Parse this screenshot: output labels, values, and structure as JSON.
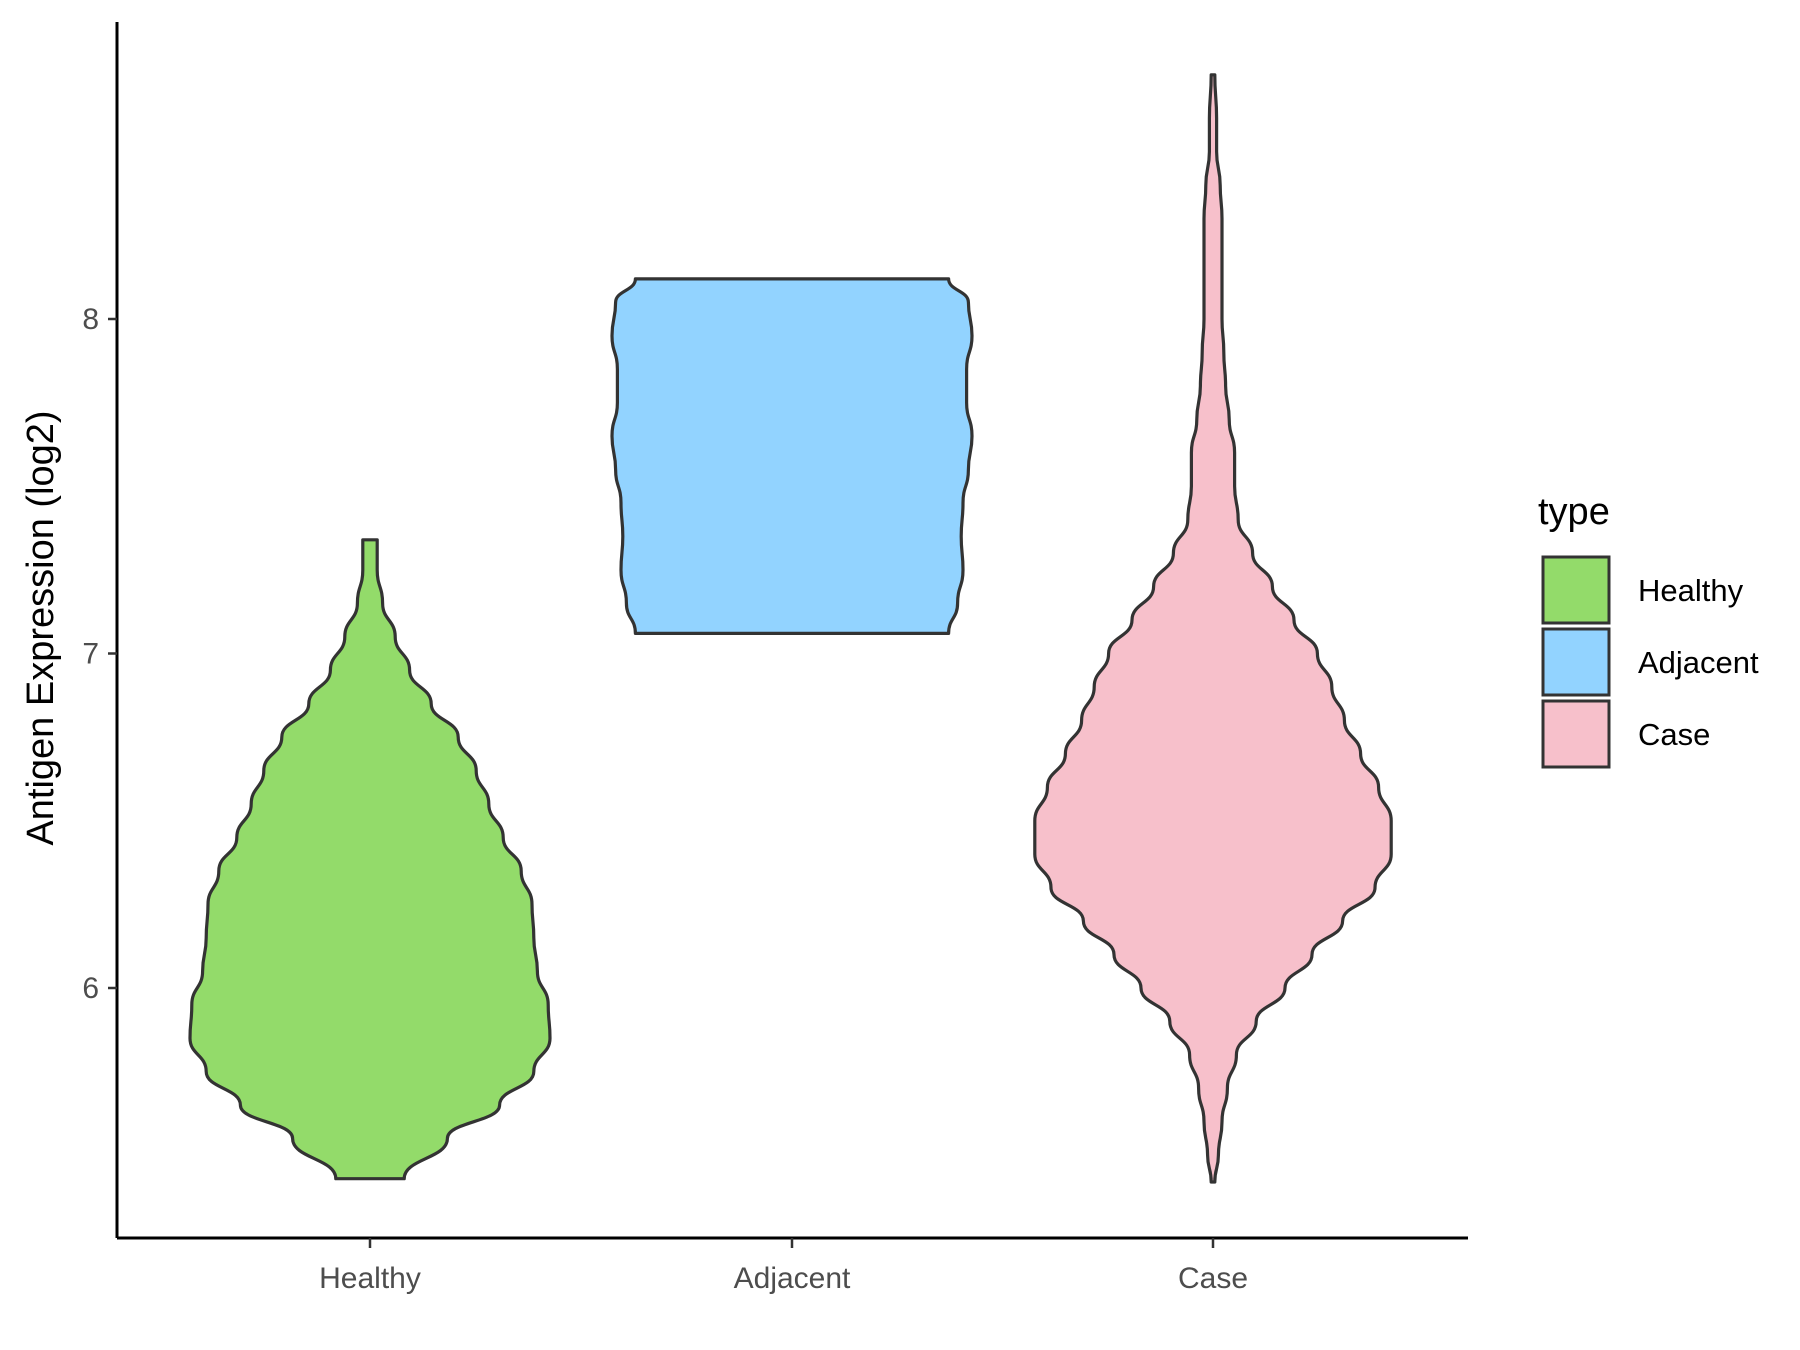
{
  "chart_data": {
    "type": "violin",
    "xlabel": "",
    "ylabel": "Antigen Expression (log2)",
    "categories": [
      "Healthy",
      "Adjacent",
      "Case"
    ],
    "y_ticks": [
      6,
      7,
      8
    ],
    "ylim": [
      5.28,
      8.9
    ],
    "grid": false,
    "legend": {
      "title": "type",
      "position": "right",
      "entries": [
        "Healthy",
        "Adjacent",
        "Case"
      ]
    },
    "series": [
      {
        "category": "Healthy",
        "color": "#93DB6A",
        "min": 5.43,
        "max": 7.34,
        "density_profile": [
          [
            5.43,
            0.19
          ],
          [
            5.55,
            0.43
          ],
          [
            5.65,
            0.72
          ],
          [
            5.75,
            0.91
          ],
          [
            5.85,
            1.0
          ],
          [
            5.95,
            0.99
          ],
          [
            6.05,
            0.93
          ],
          [
            6.15,
            0.91
          ],
          [
            6.25,
            0.9
          ],
          [
            6.35,
            0.84
          ],
          [
            6.45,
            0.74
          ],
          [
            6.55,
            0.66
          ],
          [
            6.65,
            0.59
          ],
          [
            6.75,
            0.49
          ],
          [
            6.85,
            0.34
          ],
          [
            6.95,
            0.22
          ],
          [
            7.05,
            0.14
          ],
          [
            7.15,
            0.07
          ],
          [
            7.25,
            0.04
          ],
          [
            7.34,
            0.04
          ]
        ]
      },
      {
        "category": "Adjacent",
        "color": "#92D3FF",
        "min": 7.06,
        "max": 8.12,
        "density_profile": [
          [
            7.06,
            0.87
          ],
          [
            7.15,
            0.92
          ],
          [
            7.25,
            0.95
          ],
          [
            7.35,
            0.94
          ],
          [
            7.45,
            0.95
          ],
          [
            7.55,
            0.98
          ],
          [
            7.65,
            1.0
          ],
          [
            7.75,
            0.97
          ],
          [
            7.85,
            0.97
          ],
          [
            7.95,
            1.0
          ],
          [
            8.05,
            0.98
          ],
          [
            8.12,
            0.87
          ]
        ]
      },
      {
        "category": "Case",
        "color": "#F7C0CB",
        "min": 5.42,
        "max": 8.73,
        "density_profile": [
          [
            5.42,
            0.01
          ],
          [
            5.5,
            0.03
          ],
          [
            5.6,
            0.05
          ],
          [
            5.7,
            0.08
          ],
          [
            5.8,
            0.13
          ],
          [
            5.9,
            0.24
          ],
          [
            6.0,
            0.4
          ],
          [
            6.1,
            0.55
          ],
          [
            6.2,
            0.72
          ],
          [
            6.3,
            0.9
          ],
          [
            6.4,
            0.99
          ],
          [
            6.5,
            0.99
          ],
          [
            6.6,
            0.92
          ],
          [
            6.7,
            0.82
          ],
          [
            6.8,
            0.73
          ],
          [
            6.9,
            0.66
          ],
          [
            7.0,
            0.58
          ],
          [
            7.1,
            0.45
          ],
          [
            7.2,
            0.33
          ],
          [
            7.3,
            0.22
          ],
          [
            7.4,
            0.14
          ],
          [
            7.5,
            0.12
          ],
          [
            7.6,
            0.12
          ],
          [
            7.7,
            0.09
          ],
          [
            7.8,
            0.07
          ],
          [
            7.9,
            0.06
          ],
          [
            8.0,
            0.05
          ],
          [
            8.1,
            0.05
          ],
          [
            8.2,
            0.05
          ],
          [
            8.3,
            0.05
          ],
          [
            8.4,
            0.04
          ],
          [
            8.5,
            0.02
          ],
          [
            8.6,
            0.02
          ],
          [
            8.73,
            0.01
          ]
        ]
      }
    ]
  }
}
